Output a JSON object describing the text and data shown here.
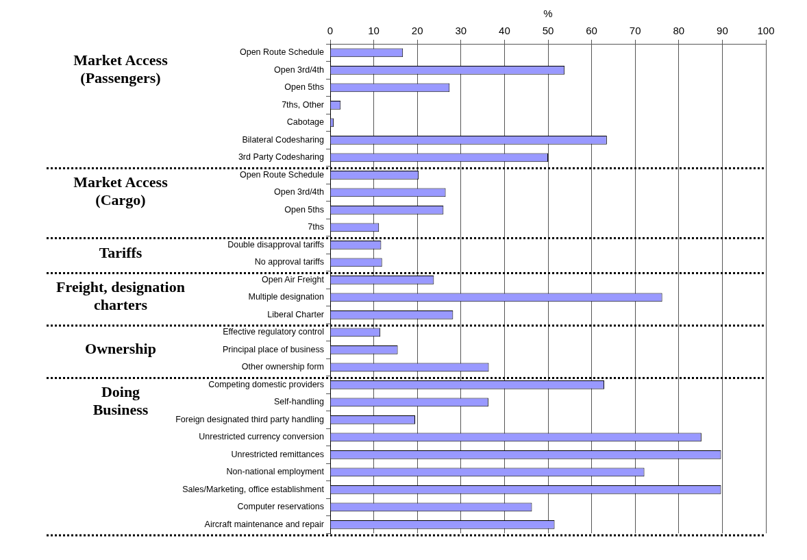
{
  "chart_data": {
    "type": "bar",
    "orientation": "horizontal",
    "xlabel": "%",
    "categories": [
      "Open Route Schedule",
      "Open 3rd/4th",
      "Open 5ths",
      "7ths, Other",
      "Cabotage",
      "Bilateral Codesharing",
      "3rd Party Codesharing",
      "Open Route Schedule",
      "Open 3rd/4th",
      "Open 5ths",
      "7ths",
      "Double disapproval tariffs",
      "No approval tariffs",
      "Open Air Freight",
      "Multiple designation",
      "Liberal Charter",
      "Effective regulatory control",
      "Principal place of business",
      "Other ownership form",
      "Competing domestic providers",
      "Self-handling",
      "Foreign designated third party handling",
      "Unrestricted currency conversion",
      "Unrestricted remittances",
      "Non-national employment",
      "Sales/Marketing, office establishment",
      "Computer reservations",
      "Aircraft maintenance and repair"
    ],
    "values": [
      16.7,
      53.8,
      27.4,
      2.4,
      0.8,
      63.5,
      50.0,
      20.3,
      26.5,
      26.0,
      11.2,
      11.7,
      11.9,
      23.8,
      76.2,
      28.2,
      11.5,
      15.5,
      36.4,
      62.9,
      36.3,
      19.5,
      85.2,
      89.7,
      72.1,
      89.7,
      46.3,
      51.5
    ],
    "color": "#9999ff",
    "xlim": [
      0,
      100
    ],
    "xticks": [
      0,
      10,
      20,
      30,
      40,
      50,
      60,
      70,
      80,
      90,
      100
    ],
    "grid": "x",
    "legend": false,
    "annotations": [
      "Market Access\n(Passengers)",
      "Market Access\n(Cargo)",
      "Tariffs",
      "Freight, designation\ncharters",
      "Ownership",
      "Doing\nBusiness"
    ],
    "ref_lines": [
      {
        "axis": "y",
        "value": "3rd Party Codesharing",
        "line_style": "dotted"
      },
      {
        "axis": "y",
        "value": "7ths",
        "line_style": "dotted"
      },
      {
        "axis": "y",
        "value": "No approval tariffs",
        "line_style": "dotted"
      },
      {
        "axis": "y",
        "value": "Liberal Charter",
        "line_style": "dotted"
      },
      {
        "axis": "y",
        "value": "Other ownership form",
        "line_style": "dotted"
      },
      {
        "axis": "y",
        "value": "Aircraft maintenance and repair",
        "line_style": "dotted"
      }
    ]
  }
}
